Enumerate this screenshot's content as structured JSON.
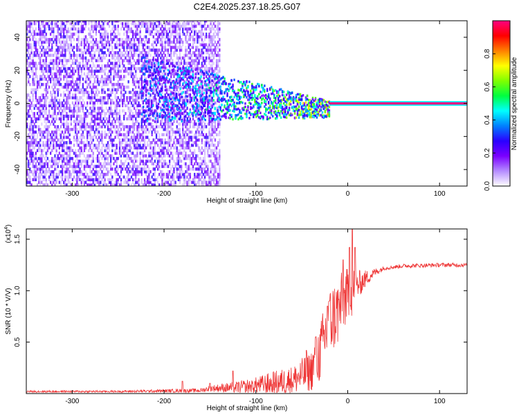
{
  "title": "C2E4.2025.237.18.25.G07",
  "chart_data": [
    {
      "type": "heatmap",
      "name": "spectrogram",
      "xlabel": "Height of straight line (km)",
      "ylabel": "Frequency (Hz)",
      "xlim": [
        -350,
        130
      ],
      "ylim": [
        -50,
        50
      ],
      "xticks": [
        -300,
        -200,
        -100,
        0,
        100
      ],
      "yticks": [
        -40,
        -20,
        0,
        20,
        40
      ],
      "xtick_labels": [
        "-300",
        "-200",
        "-100",
        "0",
        "100"
      ],
      "ytick_labels": [
        "-40",
        "-20",
        "0",
        "20",
        "40"
      ],
      "colorbar": {
        "label": "Normalized spectral amplitude",
        "range": [
          0,
          1
        ],
        "ticks": [
          0.0,
          0.2,
          0.4,
          0.6,
          0.8
        ],
        "tick_labels": [
          "0.0",
          "0.2",
          "0.4",
          "0.6",
          "0.8"
        ],
        "colors": [
          "#ffffff",
          "#b58cff",
          "#7a00ff",
          "#2a00ff",
          "#0080ff",
          "#00ffff",
          "#00ff40",
          "#80ff00",
          "#ffff00",
          "#ff8000",
          "#ff0000",
          "#ff0080"
        ]
      },
      "features": [
        {
          "kind": "diffuse-noise",
          "x_range": [
            -350,
            -140
          ],
          "freq_range": [
            -50,
            50
          ],
          "peak_amplitude": 0.25
        },
        {
          "kind": "converging-band",
          "x_range": [
            -225,
            -20
          ],
          "center_freq": [
            8,
            0
          ],
          "half_width": [
            20,
            5
          ],
          "peak_amplitude": 0.5
        },
        {
          "kind": "tone-line",
          "x_range": [
            -20,
            130
          ],
          "center_freq": 0,
          "peak_amplitude": 1.0
        }
      ]
    },
    {
      "type": "line",
      "name": "snr",
      "xlabel": "Height of straight line (km)",
      "ylabel": "SNR (10 * V/V)",
      "scale_label": "(x10",
      "scale_exponent": "4",
      "line_color": "#ee3333",
      "xlim": [
        -350,
        130
      ],
      "ylim": [
        0,
        1.6
      ],
      "xticks": [
        -300,
        -200,
        -100,
        0,
        100
      ],
      "yticks": [
        0.5,
        1.0,
        1.5
      ],
      "xtick_labels": [
        "-300",
        "-200",
        "-100",
        "0",
        "100"
      ],
      "ytick_labels": [
        "0.5",
        "1.0",
        "1.5"
      ],
      "envelope": {
        "x": [
          -350,
          -250,
          -160,
          -150,
          -120,
          -100,
          -80,
          -60,
          -40,
          -30,
          -20,
          -10,
          -5,
          5,
          10,
          20,
          30,
          40,
          60,
          100,
          130
        ],
        "y": [
          0.02,
          0.02,
          0.03,
          0.05,
          0.06,
          0.08,
          0.1,
          0.13,
          0.22,
          0.4,
          0.7,
          0.8,
          0.9,
          1.0,
          1.05,
          1.12,
          1.18,
          1.22,
          1.24,
          1.25,
          1.25
        ],
        "spread": [
          0.01,
          0.01,
          0.02,
          0.03,
          0.06,
          0.08,
          0.12,
          0.14,
          0.2,
          0.3,
          0.35,
          0.35,
          0.3,
          0.25,
          0.15,
          0.08,
          0.04,
          0.02,
          0.02,
          0.02,
          0.02
        ]
      },
      "spikes": [
        [
          -180,
          0.12
        ],
        [
          -150,
          0.1
        ],
        [
          -125,
          0.22
        ],
        [
          -45,
          0.42
        ],
        [
          -35,
          0.55
        ],
        [
          -22,
          0.85
        ],
        [
          -20,
          0.9
        ],
        [
          -5,
          1.3
        ],
        [
          2,
          1.42
        ],
        [
          5,
          1.62
        ],
        [
          8,
          1.42
        ]
      ]
    }
  ]
}
